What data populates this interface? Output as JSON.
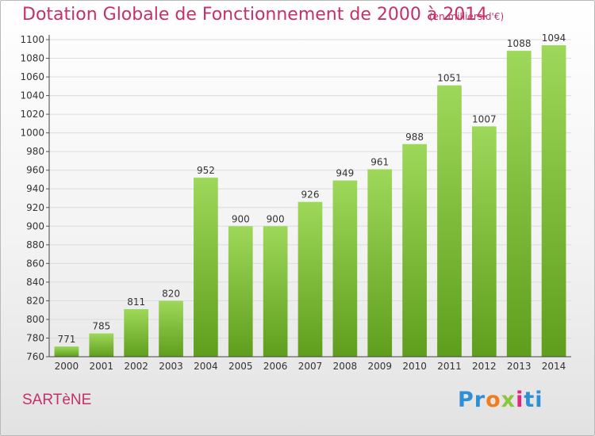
{
  "header": {
    "title": "Dotation Globale de Fonctionnement de 2000 à 2014",
    "unit_note": "(en milliers d'€)"
  },
  "footer": {
    "commune": "SARTèNE",
    "brand_logo": "Proxiti"
  },
  "colors": {
    "accent": "#c4306a",
    "bar_top": "#9ed85a",
    "bar_bottom": "#5f9e1c"
  },
  "chart_data": {
    "type": "bar",
    "title": "Dotation Globale de Fonctionnement de 2000 à 2014",
    "subtitle": "(en milliers d'€)",
    "xlabel": "",
    "ylabel": "",
    "categories": [
      "2000",
      "2001",
      "2002",
      "2003",
      "2004",
      "2005",
      "2006",
      "2007",
      "2008",
      "2009",
      "2010",
      "2011",
      "2012",
      "2013",
      "2014"
    ],
    "values": [
      771,
      785,
      811,
      820,
      952,
      900,
      900,
      926,
      949,
      961,
      988,
      1051,
      1007,
      1088,
      1094
    ],
    "ylim": [
      760,
      1100
    ],
    "yticks": [
      760,
      780,
      800,
      820,
      840,
      860,
      880,
      900,
      920,
      940,
      960,
      980,
      1000,
      1020,
      1040,
      1060,
      1080,
      1100
    ],
    "grid": true,
    "legend": "none"
  }
}
